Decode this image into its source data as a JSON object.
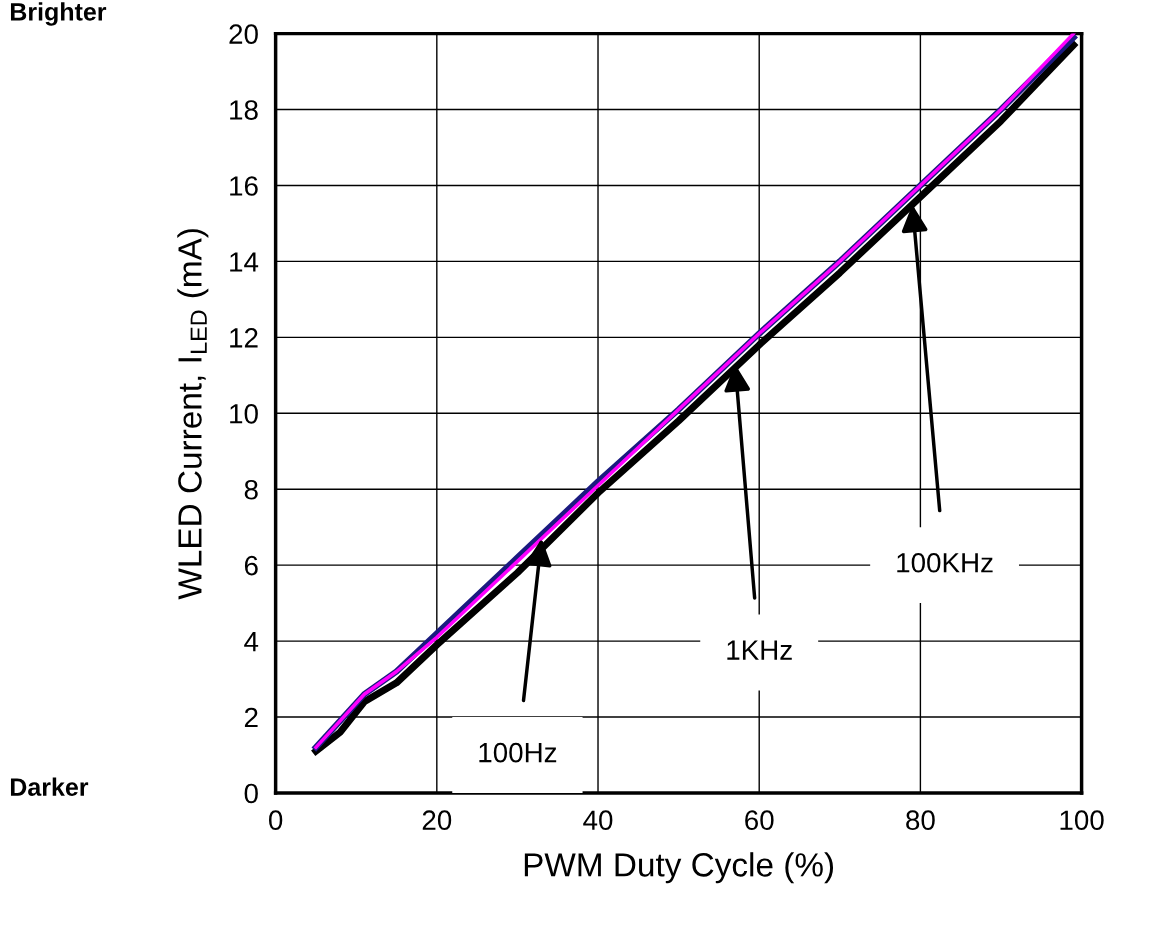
{
  "chart_data": {
    "type": "line",
    "xlabel": "PWM Duty Cycle (%)",
    "ylabel": "WLED Current, I$_{LED}$ (mA)",
    "xlim": [
      0,
      100
    ],
    "ylim": [
      0,
      20
    ],
    "xticks": [
      0,
      20,
      40,
      60,
      80,
      100
    ],
    "yticks": [
      0,
      2,
      4,
      6,
      8,
      10,
      12,
      14,
      16,
      18,
      20
    ],
    "grid": true,
    "marker": "none",
    "line_style": "solid",
    "legend": false,
    "series": [
      {
        "color": "#000000",
        "x": [
          5,
          8,
          11,
          15,
          20,
          30,
          40,
          50,
          60,
          70,
          80,
          90,
          99
        ],
        "values": [
          1.1,
          1.6,
          2.4,
          2.9,
          3.9,
          5.8,
          7.9,
          9.8,
          11.8,
          13.7,
          15.7,
          17.7,
          19.7
        ]
      },
      {
        "color": "#1a1a80",
        "x": [
          5,
          8,
          11,
          15,
          20,
          30,
          40,
          50,
          60,
          70,
          80,
          90,
          99
        ],
        "values": [
          1.2,
          1.9,
          2.6,
          3.2,
          4.2,
          6.2,
          8.2,
          10.1,
          12.1,
          14.0,
          16.0,
          18.0,
          19.9
        ]
      },
      {
        "color": "#ff00ff",
        "x": [
          5,
          8,
          11,
          15,
          20,
          30,
          40,
          50,
          60,
          70,
          80,
          90,
          99
        ],
        "values": [
          1.2,
          1.9,
          2.6,
          3.2,
          4.1,
          6.1,
          8.1,
          10.1,
          12.1,
          14.0,
          16.0,
          18.0,
          20.0
        ]
      }
    ],
    "annotations": [
      "100Hz",
      "1KHz",
      "100KHz",
      "Brighter",
      "Darker"
    ]
  }
}
